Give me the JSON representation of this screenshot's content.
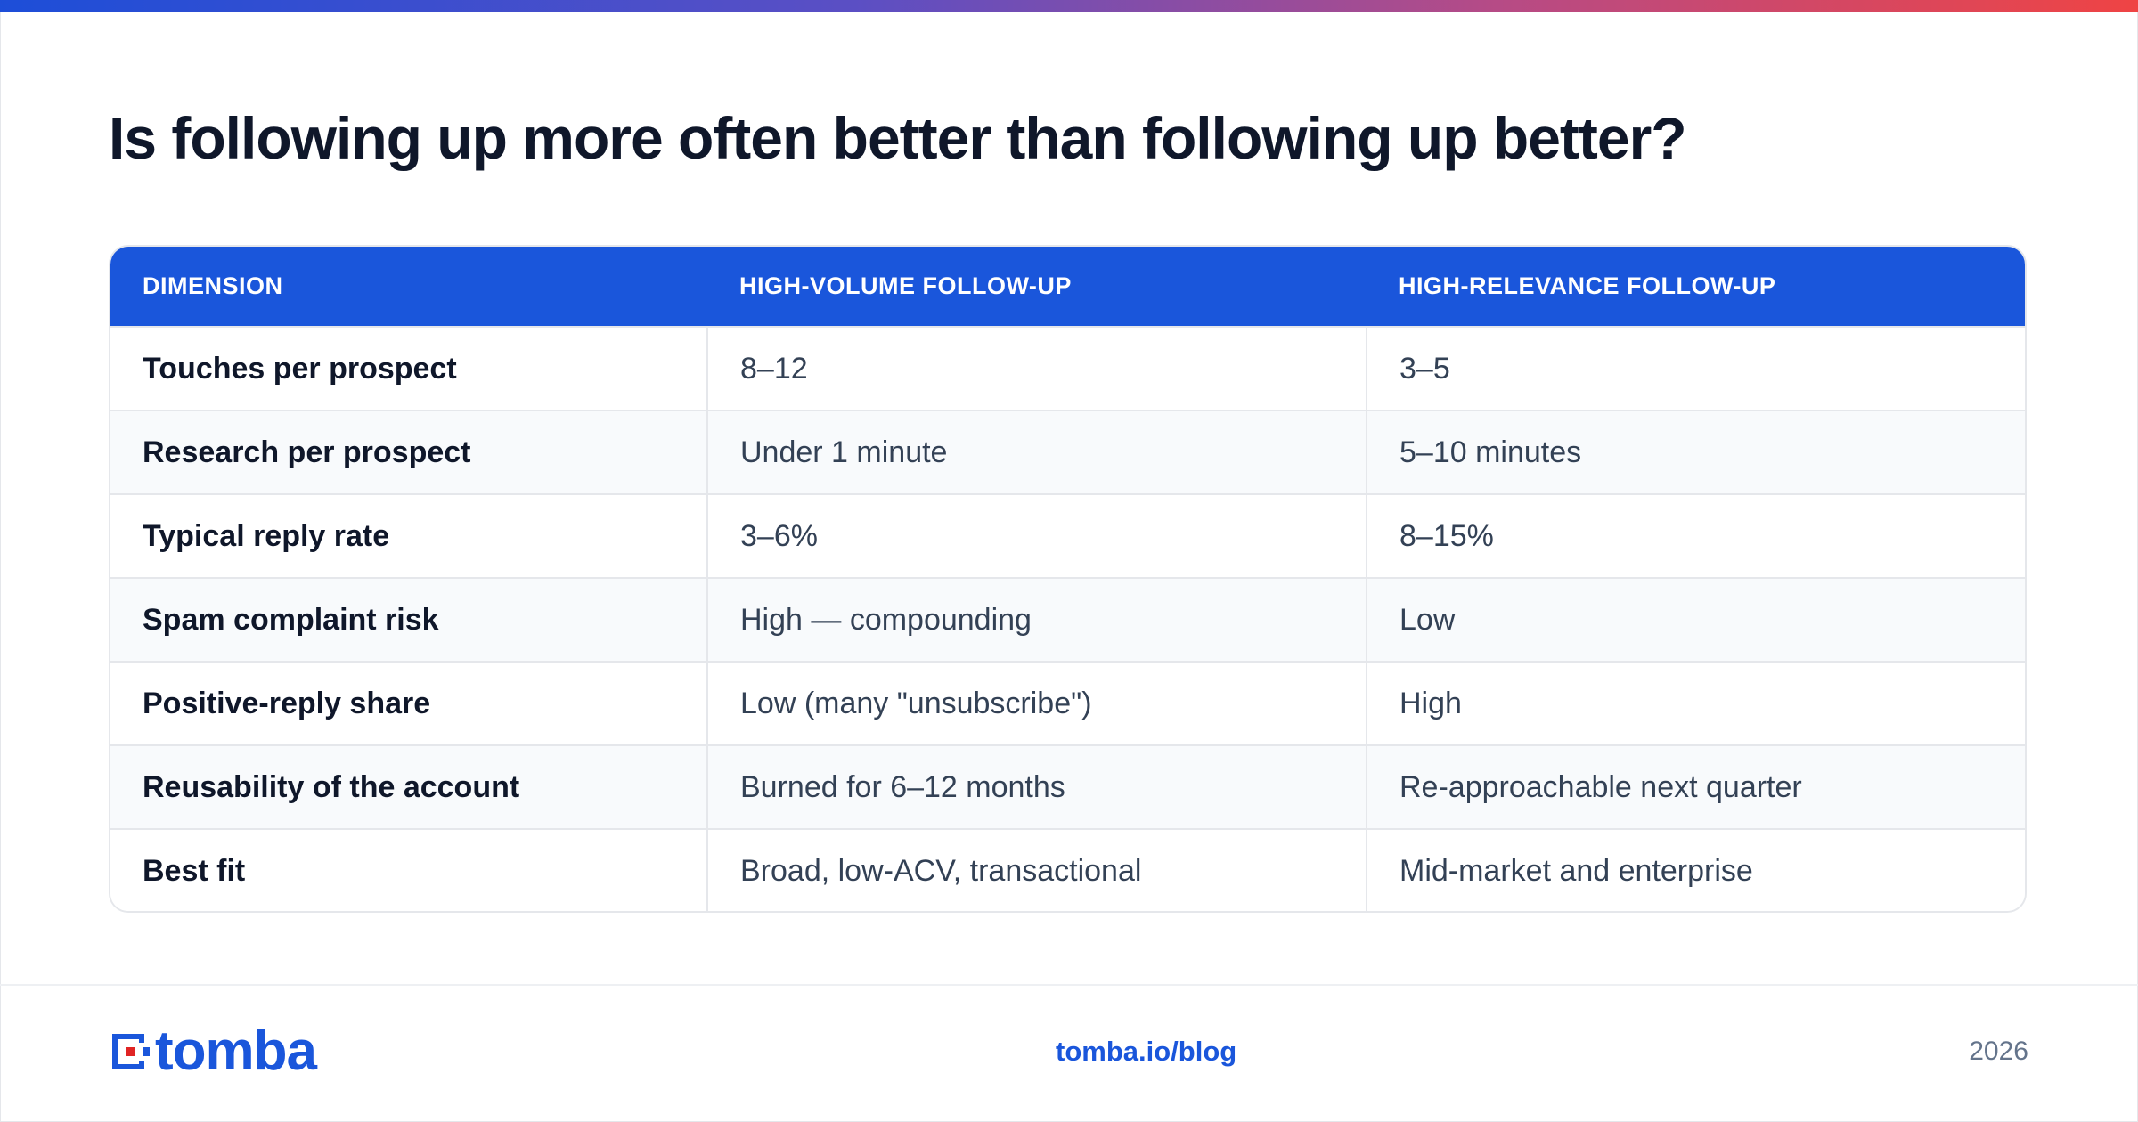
{
  "title": "Is following up more often better than following up better?",
  "table": {
    "headers": [
      "DIMENSION",
      "HIGH-VOLUME FOLLOW-UP",
      "HIGH-RELEVANCE FOLLOW-UP"
    ],
    "rows": [
      [
        "Touches per prospect",
        "8–12",
        "3–5"
      ],
      [
        "Research per prospect",
        "Under 1 minute",
        "5–10 minutes"
      ],
      [
        "Typical reply rate",
        "3–6%",
        "8–15%"
      ],
      [
        "Spam complaint risk",
        "High — compounding",
        "Low"
      ],
      [
        "Positive-reply share",
        "Low (many \"unsubscribe\")",
        "High"
      ],
      [
        "Reusability of the account",
        "Burned for 6–12 months",
        "Re-approachable next quarter"
      ],
      [
        "Best fit",
        "Broad, low-ACV, transactional",
        "Mid-market and enterprise"
      ]
    ]
  },
  "footer": {
    "logo_text": "tomba",
    "link": "tomba.io/blog",
    "year": "2026"
  },
  "colors": {
    "brand_blue": "#1a56db",
    "logo_red": "#e02424",
    "gradient": [
      "#1d4ed8",
      "#ef4444"
    ]
  },
  "icons": {
    "logo": "tomba-logo-icon"
  }
}
